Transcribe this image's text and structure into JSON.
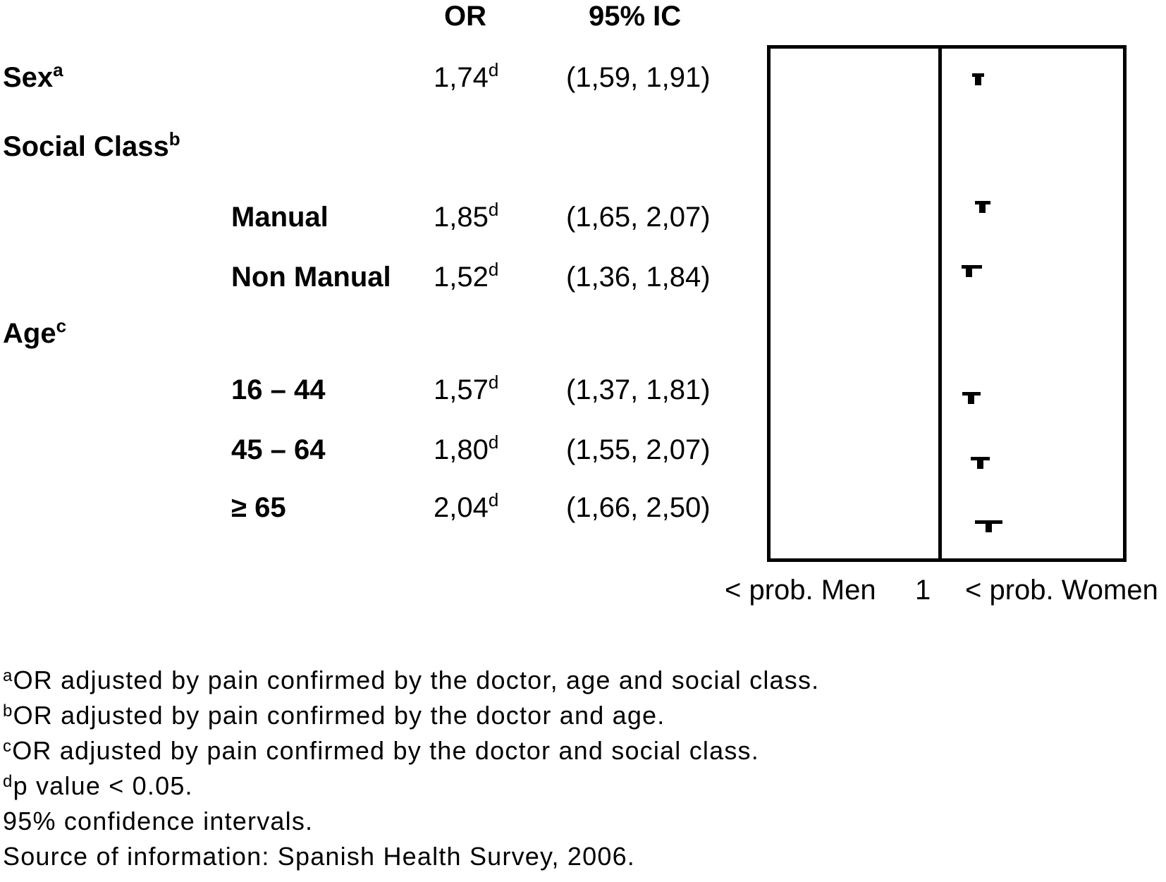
{
  "header": {
    "or": "OR",
    "ci": "95% IC"
  },
  "table": {
    "rows": [
      {
        "label": "Sex",
        "sup": "a",
        "indent": false,
        "or": "1,74",
        "or_sup": "d",
        "ci": "(1,59, 1,91)"
      },
      {
        "label": "Social Class",
        "sup": "b",
        "indent": false,
        "or": "",
        "or_sup": "",
        "ci": ""
      },
      {
        "label": "Manual",
        "sup": "",
        "indent": true,
        "or": "1,85",
        "or_sup": "d",
        "ci": "(1,65, 2,07)"
      },
      {
        "label": "Non Manual",
        "sup": "",
        "indent": true,
        "or": "1,52",
        "or_sup": "d",
        "ci": "(1,36, 1,84)"
      },
      {
        "label": "Age",
        "sup": "c",
        "indent": false,
        "or": "",
        "or_sup": "",
        "ci": ""
      },
      {
        "label": "16 – 44",
        "sup": "",
        "indent": true,
        "or": "1,57",
        "or_sup": "d",
        "ci": "(1,37, 1,81)"
      },
      {
        "label": "45 – 64",
        "sup": "",
        "indent": true,
        "or": "1,80",
        "or_sup": "d",
        "ci": "(1,55, 2,07)"
      },
      {
        "label": "≥ 65",
        "sup": "",
        "indent": true,
        "or": "2,04",
        "or_sup": "d",
        "ci": "(1,66, 2,50)"
      }
    ]
  },
  "axis": {
    "left_label": "< prob. Men",
    "center_label": "1",
    "right_label": "< prob. Women"
  },
  "footnotes": [
    {
      "sup": "a",
      "text": "OR adjusted by pain confirmed by the doctor, age and social class."
    },
    {
      "sup": "b",
      "text": "OR adjusted by pain confirmed by the doctor and age."
    },
    {
      "sup": "c",
      "text": "OR adjusted by pain confirmed by the doctor and social class."
    },
    {
      "sup": "d",
      "text": "p value < 0.05."
    },
    {
      "sup": "",
      "text": "95% confidence intervals."
    },
    {
      "sup": "",
      "text": "Source of information: Spanish Health Survey, 2006."
    }
  ],
  "chart_data": {
    "type": "forest",
    "x_scale": "log",
    "x_reference_line": 1,
    "axis_labels": {
      "left": "< prob. Men",
      "center": "1",
      "right": "< prob. Women"
    },
    "columns": [
      "OR",
      "95% IC"
    ],
    "series": [
      {
        "label": "Sex",
        "or": 1.74,
        "ci": [
          1.59,
          1.91
        ]
      },
      {
        "label": "Manual",
        "or": 1.85,
        "ci": [
          1.65,
          2.07
        ]
      },
      {
        "label": "Non Manual",
        "or": 1.52,
        "ci": [
          1.36,
          1.84
        ]
      },
      {
        "label": "16 – 44",
        "or": 1.57,
        "ci": [
          1.37,
          1.81
        ]
      },
      {
        "label": "45 – 64",
        "or": 1.8,
        "ci": [
          1.55,
          2.07
        ]
      },
      {
        "label": "≥ 65",
        "or": 2.04,
        "ci": [
          1.66,
          2.5
        ]
      }
    ]
  },
  "colors": {
    "ink": "#000000",
    "background": "#ffffff"
  }
}
